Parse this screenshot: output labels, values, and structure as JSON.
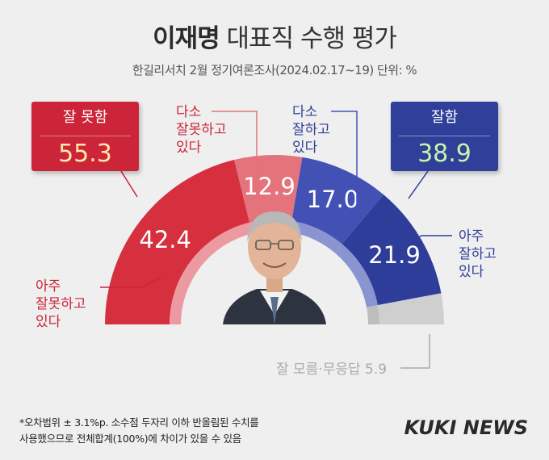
{
  "header": {
    "title_name": "이재명",
    "title_rest": " 대표직 수행 평가",
    "subtitle": "한길리서치 2월 정기여론조사(2024.02.17~19) 단위: %"
  },
  "summary": {
    "negative": {
      "label": "잘 못함",
      "value": "55.3",
      "color": "#cc2438"
    },
    "positive": {
      "label": "잘함",
      "value": "38.9",
      "color": "#2f3f9a"
    }
  },
  "chart_data": {
    "type": "pie",
    "title": "이재명 대표직 수행 평가",
    "subtitle": "한길리서치 2월 정기여론조사(2024.02.17~19) 단위: %",
    "unit": "%",
    "shape": "semicircle-donut",
    "slices": [
      {
        "label": "아주 잘못하고 있다",
        "value": 42.4,
        "color": "#d6303f"
      },
      {
        "label": "다소 잘못하고 있다",
        "value": 12.9,
        "color": "#e4737c"
      },
      {
        "label": "다소 잘하고 있다",
        "value": 17.0,
        "color": "#4351b5"
      },
      {
        "label": "아주 잘하고 있다",
        "value": 21.9,
        "color": "#2f3d9a"
      },
      {
        "label": "잘 모름·무응답",
        "value": 5.9,
        "color": "#cfcfcf"
      }
    ]
  },
  "annotations": {
    "very_bad": "아주\n잘못하고\n있다",
    "some_bad": "다소\n잘못하고\n있다",
    "some_good": "다소\n잘하고\n있다",
    "very_good": "아주\n잘하고\n있다",
    "unknown": "잘 모름·무응답 5.9"
  },
  "footer": {
    "note": "*오차범위 ± 3.1%p. 소수점 두자리 이하 반올림된 수치를\n사용했으므로 전체합계(100%)에 차이가 있을 수 있음",
    "brand": "KUKI NEWS"
  },
  "colors": {
    "red_inner": "#ec9aa1",
    "blue_inner": "#8a94d0",
    "gray_inner": "#bdbdbd",
    "background": "#efefef"
  }
}
